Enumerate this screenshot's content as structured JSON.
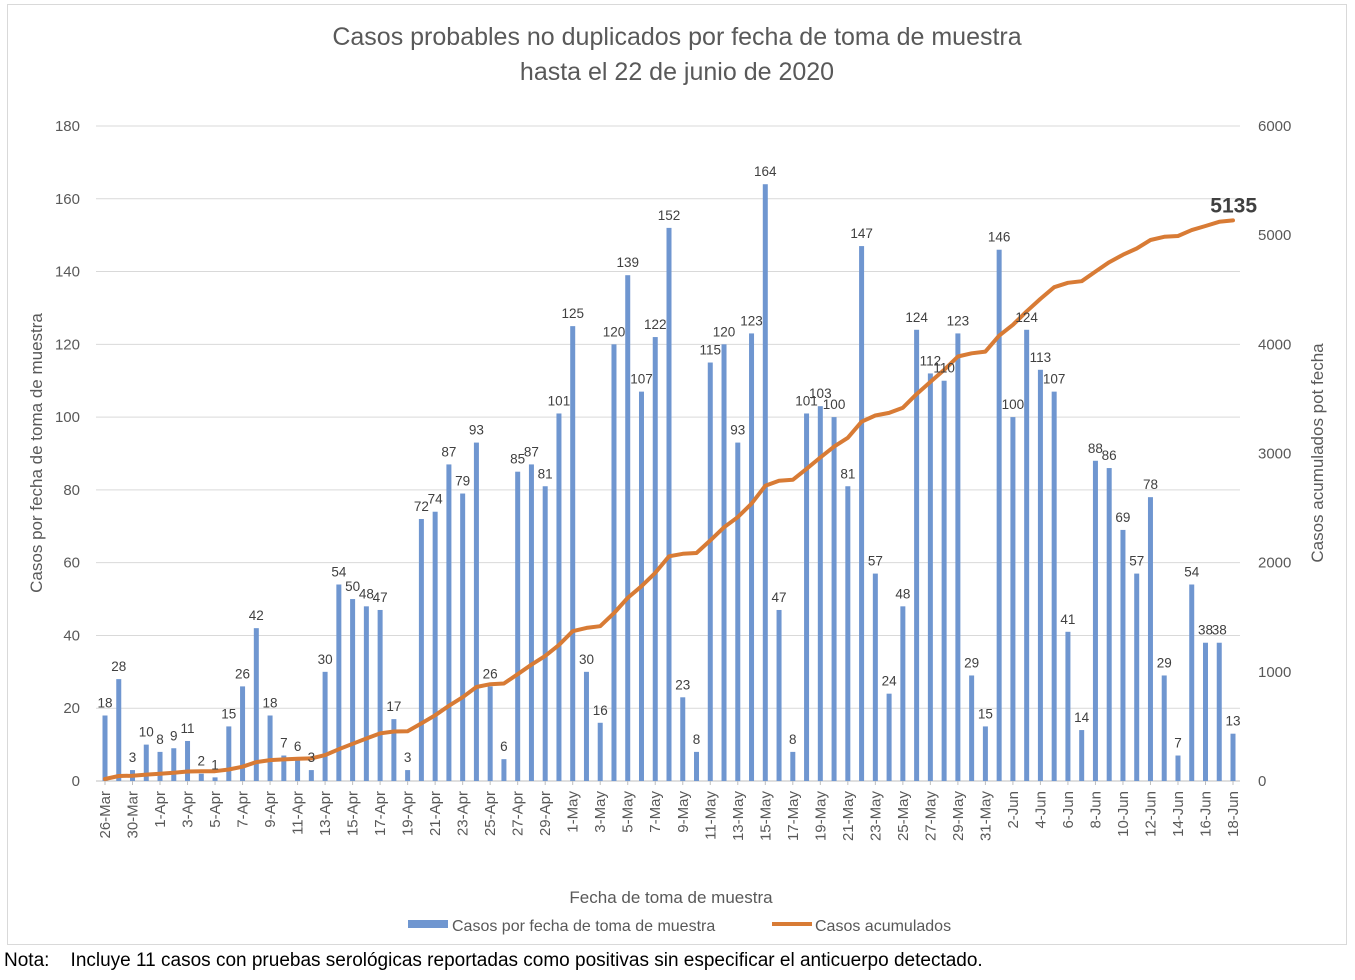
{
  "chart_data": {
    "type": "bar+line",
    "title": "Casos probables no duplicados por fecha de toma de muestra",
    "subtitle": "hasta el 22 de junio de 2020",
    "xlabel": "Fecha de toma de muestra",
    "ylabel": "Casos por fecha de toma de muestra",
    "y2label": "Casos acumulados pot fecha",
    "ylim": [
      0,
      180
    ],
    "y_ticks": [
      0,
      20,
      40,
      60,
      80,
      100,
      120,
      140,
      160,
      180
    ],
    "y2lim": [
      0,
      6000
    ],
    "y2_ticks": [
      0,
      1000,
      2000,
      3000,
      4000,
      5000,
      6000
    ],
    "grid": true,
    "legend_position": "bottom",
    "x_tick_labels": [
      "26-Mar",
      "30-Mar",
      "1-Apr",
      "3-Apr",
      "5-Apr",
      "7-Apr",
      "9-Apr",
      "11-Apr",
      "13-Apr",
      "15-Apr",
      "17-Apr",
      "19-Apr",
      "21-Apr",
      "23-Apr",
      "25-Apr",
      "27-Apr",
      "29-Apr",
      "1-May",
      "3-May",
      "5-May",
      "7-May",
      "9-May",
      "11-May",
      "13-May",
      "15-May",
      "17-May",
      "19-May",
      "21-May",
      "23-May",
      "25-May",
      "27-May",
      "29-May",
      "31-May",
      "2-Jun",
      "4-Jun",
      "6-Jun",
      "8-Jun",
      "10-Jun",
      "12-Jun",
      "14-Jun",
      "16-Jun",
      "18-Jun"
    ],
    "x_tick_every": 2,
    "series": [
      {
        "name": "Casos por fecha de toma de muestra",
        "type": "bar",
        "axis": "left",
        "color": "#6f96d0",
        "values": [
          18,
          28,
          3,
          10,
          8,
          9,
          11,
          2,
          1,
          15,
          26,
          42,
          18,
          7,
          6,
          3,
          30,
          54,
          50,
          48,
          47,
          17,
          3,
          72,
          74,
          87,
          79,
          93,
          26,
          6,
          85,
          87,
          81,
          101,
          125,
          30,
          16,
          120,
          139,
          107,
          122,
          152,
          23,
          8,
          115,
          120,
          93,
          123,
          164,
          47,
          8,
          101,
          103,
          100,
          81,
          147,
          57,
          24,
          48,
          124,
          112,
          110,
          123,
          29,
          15,
          146,
          100,
          124,
          113,
          107,
          41,
          14,
          88,
          86,
          69,
          57,
          78,
          29,
          7,
          54,
          38,
          38,
          13
        ]
      },
      {
        "name": "Casos acumulados",
        "type": "line",
        "axis": "right",
        "color": "#d87b35",
        "values": [
          18,
          46,
          49,
          59,
          67,
          76,
          87,
          89,
          90,
          105,
          131,
          173,
          191,
          198,
          204,
          207,
          237,
          291,
          341,
          389,
          436,
          453,
          456,
          528,
          602,
          689,
          768,
          861,
          887,
          893,
          978,
          1065,
          1146,
          1247,
          1372,
          1402,
          1418,
          1538,
          1677,
          1784,
          1906,
          2058,
          2081,
          2089,
          2204,
          2324,
          2417,
          2540,
          2704,
          2751,
          2759,
          2860,
          2963,
          3063,
          3144,
          3291,
          3348,
          3372,
          3420,
          3544,
          3656,
          3766,
          3889,
          3918,
          3933,
          4079,
          4179,
          4303,
          4416,
          4523,
          4564,
          4578,
          4666,
          4752,
          4821,
          4878,
          4956,
          4985,
          4992,
          5046,
          5084,
          5122,
          5135
        ],
        "final_label": "5135"
      }
    ]
  },
  "note": {
    "label": "Nota:",
    "text": "Incluye 11 casos con pruebas serológicas reportadas como positivas sin especificar el anticuerpo detectado."
  }
}
